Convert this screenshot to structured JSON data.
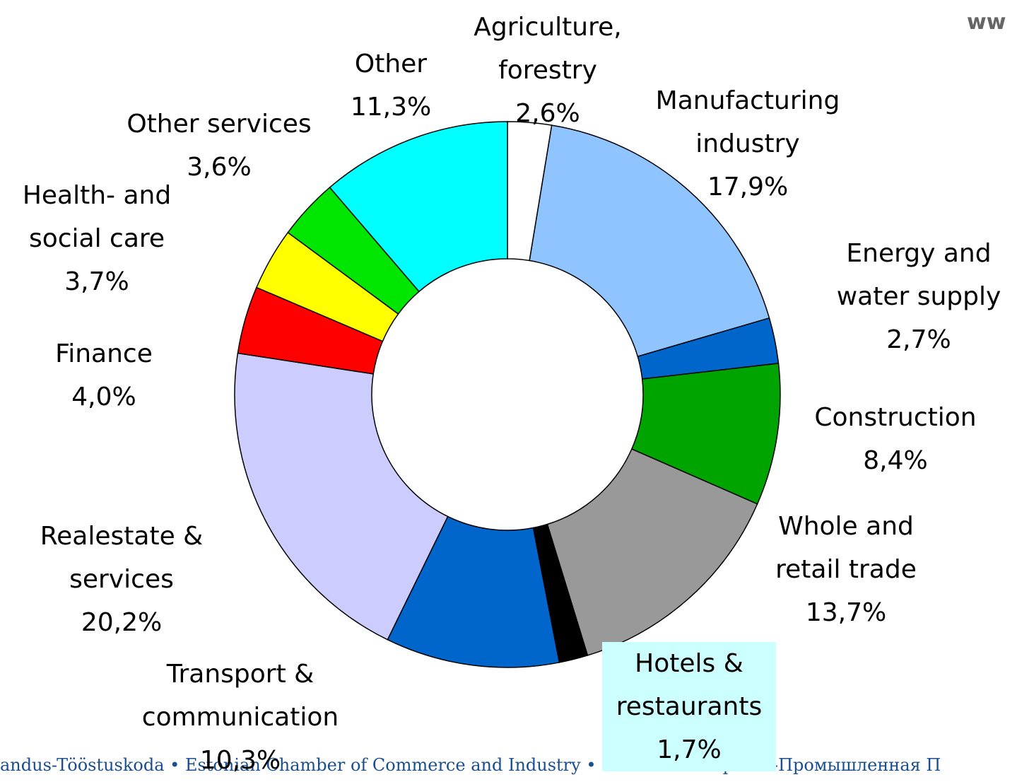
{
  "chart_data": {
    "type": "pie",
    "donut": true,
    "categories": [
      "Agriculture, forestry",
      "Manufacturing industry",
      "Energy and water supply",
      "Construction",
      "Whole and retail trade",
      "Hotels & restaurants",
      "Transport & communication",
      "Realestate & services",
      "Finance",
      "Health- and social care",
      "Other services",
      "Other"
    ],
    "values": [
      2.6,
      17.9,
      2.7,
      8.4,
      13.7,
      1.7,
      10.3,
      20.2,
      4.0,
      3.7,
      3.6,
      11.3
    ],
    "value_labels": [
      "2,6%",
      "17,9%",
      "2,7%",
      "8,4%",
      "13,7%",
      "1,7%",
      "10,3%",
      "20,2%",
      "4,0%",
      "3,7%",
      "3,6%",
      "11,3%"
    ],
    "colors": [
      "#ffffff",
      "#90c4ff",
      "#0066cc",
      "#00a400",
      "#999999",
      "#000000",
      "#0066cc",
      "#ccccff",
      "#ff0000",
      "#ffff00",
      "#00e600",
      "#00ffff"
    ]
  },
  "footer": "andus-Tööstuskoda • Estonian Chamber of Commerce and Industry • Эстонская Торгово-Промышленная П",
  "watermark": "ww"
}
